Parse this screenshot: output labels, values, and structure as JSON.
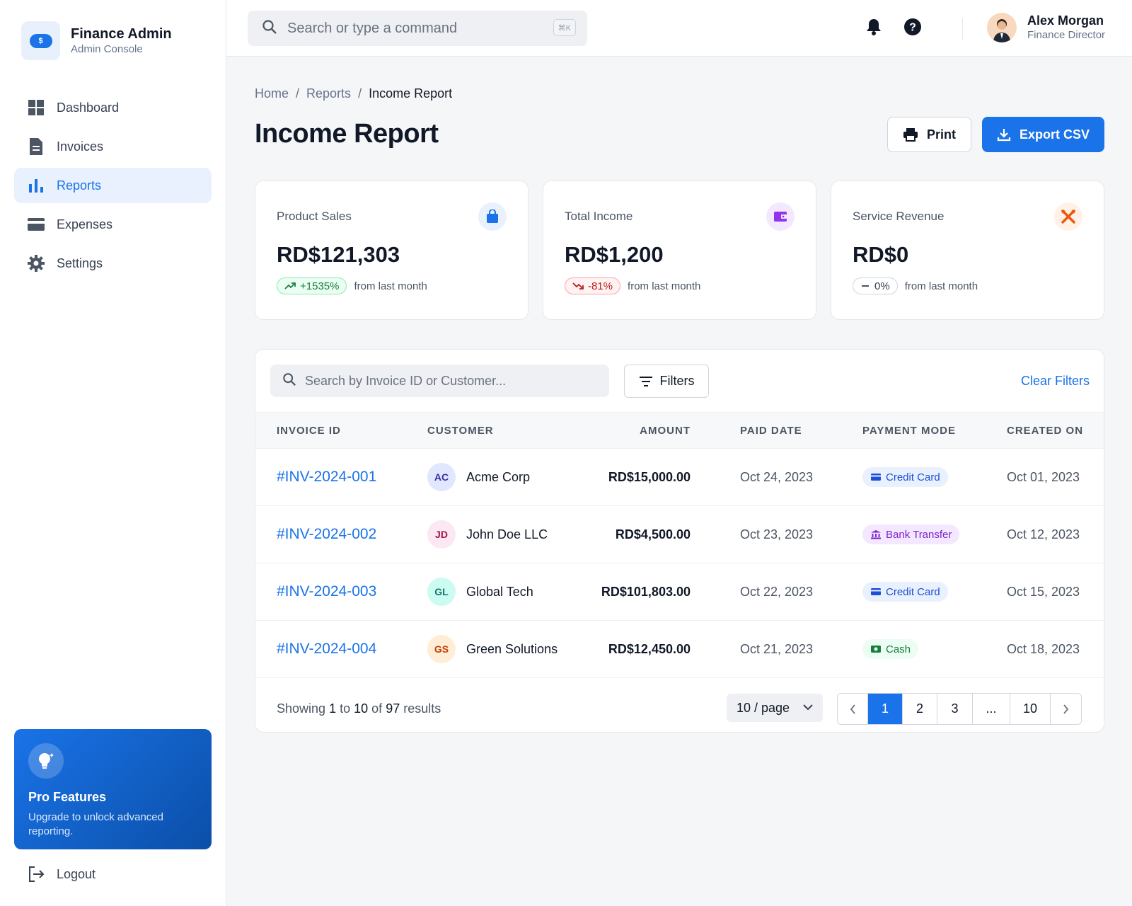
{
  "brand": {
    "title": "Finance Admin",
    "subtitle": "Admin Console",
    "logo_symbol": "$"
  },
  "sidebar": {
    "items": [
      {
        "label": "Dashboard",
        "icon": "dashboard-icon",
        "active": false
      },
      {
        "label": "Invoices",
        "icon": "invoice-icon",
        "active": false
      },
      {
        "label": "Reports",
        "icon": "bar-chart-icon",
        "active": true
      },
      {
        "label": "Expenses",
        "icon": "credit-card-icon",
        "active": false
      },
      {
        "label": "Settings",
        "icon": "gear-icon",
        "active": false
      }
    ],
    "promo": {
      "title": "Pro Features",
      "text": "Upgrade to unlock advanced reporting."
    },
    "logout_label": "Logout"
  },
  "topbar": {
    "search_placeholder": "Search or type a command",
    "shortcut": "⌘K",
    "user": {
      "name": "Alex Morgan",
      "role": "Finance Director"
    }
  },
  "breadcrumb": {
    "home": "Home",
    "section": "Reports",
    "current": "Income Report",
    "separator": "/"
  },
  "page": {
    "title": "Income Report",
    "print_label": "Print",
    "export_label": "Export CSV"
  },
  "stats": [
    {
      "label": "Product Sales",
      "value": "RD$121,303",
      "trend": "+1535%",
      "direction": "up",
      "note": "from last month",
      "icon": "shopping-bag-icon",
      "icon_color": "#1a73e8",
      "icon_bg": "#e8f1fd"
    },
    {
      "label": "Total Income",
      "value": "RD$1,200",
      "trend": "-81%",
      "direction": "down",
      "note": "from last month",
      "icon": "wallet-icon",
      "icon_color": "#9333ea",
      "icon_bg": "#f3e8ff"
    },
    {
      "label": "Service Revenue",
      "value": "RD$0",
      "trend": "0%",
      "direction": "flat",
      "note": "from last month",
      "icon": "tools-icon",
      "icon_color": "#ea580c",
      "icon_bg": "#fff1e6"
    }
  ],
  "table": {
    "search_placeholder": "Search by Invoice ID or Customer...",
    "filters_label": "Filters",
    "clear_filters_label": "Clear Filters",
    "columns": [
      "INVOICE ID",
      "CUSTOMER",
      "AMOUNT",
      "PAID DATE",
      "PAYMENT MODE",
      "CREATED ON"
    ],
    "rows": [
      {
        "id": "#INV-2024-001",
        "initials": "AC",
        "customer": "Acme Corp",
        "amount": "RD$15,000.00",
        "paid": "Oct 24, 2023",
        "mode": "Credit Card",
        "mode_type": "card",
        "created": "Oct 01, 2023",
        "av_bg": "#e0e7ff",
        "av_fg": "#3730a3"
      },
      {
        "id": "#INV-2024-002",
        "initials": "JD",
        "customer": "John Doe LLC",
        "amount": "RD$4,500.00",
        "paid": "Oct 23, 2023",
        "mode": "Bank Transfer",
        "mode_type": "bank",
        "created": "Oct 12, 2023",
        "av_bg": "#fce7f3",
        "av_fg": "#9d174d"
      },
      {
        "id": "#INV-2024-003",
        "initials": "GL",
        "customer": "Global Tech",
        "amount": "RD$101,803.00",
        "paid": "Oct 22, 2023",
        "mode": "Credit Card",
        "mode_type": "card",
        "created": "Oct 15, 2023",
        "av_bg": "#ccfbf1",
        "av_fg": "#0f766e"
      },
      {
        "id": "#INV-2024-004",
        "initials": "GS",
        "customer": "Green Solutions",
        "amount": "RD$12,450.00",
        "paid": "Oct 21, 2023",
        "mode": "Cash",
        "mode_type": "cash",
        "created": "Oct 18, 2023",
        "av_bg": "#ffedd5",
        "av_fg": "#c2410c"
      }
    ],
    "footer": {
      "showing_prefix": "Showing",
      "from": "1",
      "to_word": "to",
      "to": "10",
      "of_word": "of",
      "total": "97",
      "suffix": "results",
      "page_size": "10 / page",
      "pages": [
        "1",
        "2",
        "3",
        "...",
        "10"
      ],
      "current_page": "1"
    }
  }
}
